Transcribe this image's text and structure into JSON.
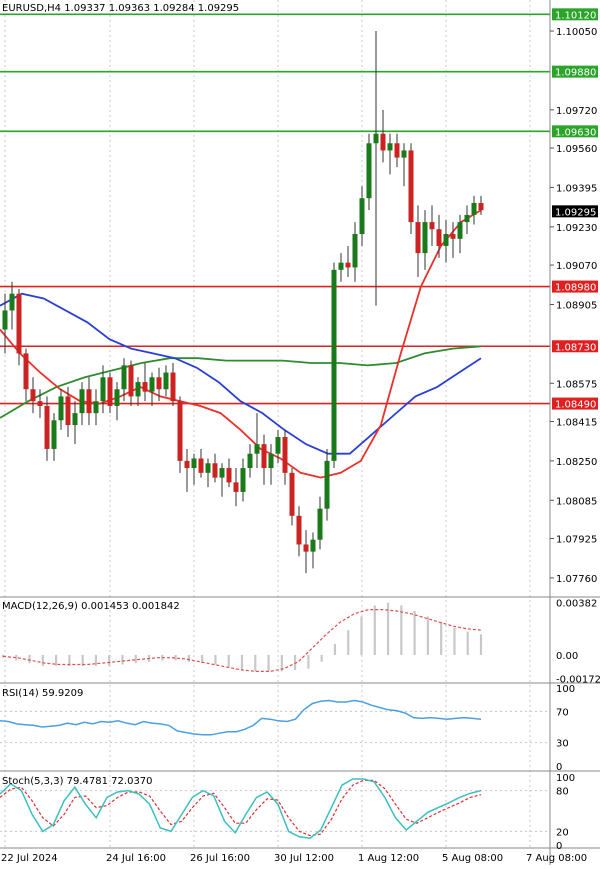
{
  "header": {
    "symbol_line": "EURUSD,H4  1.09337 1.09363 1.09284 1.09295"
  },
  "colors": {
    "bull": "#1a7a1a",
    "bear": "#cc2222",
    "ma_red": "#e8312a",
    "ma_blue": "#2a3fd6",
    "ma_green": "#2e8b2e",
    "level_green": "#2aa52a",
    "level_red": "#e02020",
    "macd_signal": "#e05050",
    "macd_hist": "#c8c8c8",
    "rsi_line": "#4aa0e0",
    "stoch_main": "#3bbfbf",
    "stoch_signal": "#e03030",
    "grid": "#c8c8c8"
  },
  "chart_data": [
    {
      "type": "candlestick",
      "title": "EURUSD,H4",
      "ohlc_text": "1.09337 1.09363 1.09284 1.09295",
      "ylim": [
        1.0768,
        1.1018
      ],
      "price_ticks": [
        "1.10050",
        "1.09720",
        "1.09560",
        "1.09395",
        "1.09230",
        "1.09070",
        "1.08905",
        "1.08575",
        "1.08415",
        "1.08250",
        "1.08085",
        "1.07925",
        "1.07760"
      ],
      "levels": [
        {
          "label": "1.10120",
          "value": 1.1012,
          "color": "green"
        },
        {
          "label": "1.09880",
          "value": 1.0988,
          "color": "green"
        },
        {
          "label": "1.09630",
          "value": 1.0963,
          "color": "green"
        },
        {
          "label": "1.08980",
          "value": 1.0898,
          "color": "red"
        },
        {
          "label": "1.08730",
          "value": 1.0873,
          "color": "red"
        },
        {
          "label": "1.08490",
          "value": 1.0849,
          "color": "red"
        }
      ],
      "current_price_label": "1.09295",
      "current_price": 1.09295,
      "x_labels": [
        "22 Jul 2024",
        "24 Jul 16:00",
        "26 Jul 16:00",
        "30 Jul 12:00",
        "1 Aug 12:00",
        "5 Aug 08:00",
        "7 Aug 08:00"
      ],
      "x_label_index": [
        0,
        15,
        27,
        39,
        51,
        63,
        75
      ],
      "candles": [
        [
          1.088,
          1.0895,
          1.087,
          1.0888
        ],
        [
          1.0888,
          1.09,
          1.088,
          1.0895
        ],
        [
          1.0895,
          1.0897,
          1.0865,
          1.087
        ],
        [
          1.087,
          1.0872,
          1.085,
          1.0855
        ],
        [
          1.0855,
          1.086,
          1.0845,
          1.085
        ],
        [
          1.085,
          1.0855,
          1.0843,
          1.0848
        ],
        [
          1.0848,
          1.0852,
          1.0825,
          1.083
        ],
        [
          1.083,
          1.0845,
          1.0825,
          1.0842
        ],
        [
          1.0842,
          1.0855,
          1.0838,
          1.0852
        ],
        [
          1.0852,
          1.0856,
          1.0835,
          1.084
        ],
        [
          1.084,
          1.085,
          1.0832,
          1.0845
        ],
        [
          1.0845,
          1.0858,
          1.084,
          1.0855
        ],
        [
          1.0855,
          1.086,
          1.084,
          1.0845
        ],
        [
          1.0845,
          1.0855,
          1.084,
          1.085
        ],
        [
          1.085,
          1.0865,
          1.0845,
          1.086
        ],
        [
          1.086,
          1.0862,
          1.0845,
          1.0848
        ],
        [
          1.0848,
          1.0858,
          1.0842,
          1.0855
        ],
        [
          1.0855,
          1.0868,
          1.085,
          1.0865
        ],
        [
          1.0865,
          1.0867,
          1.0848,
          1.0852
        ],
        [
          1.0852,
          1.086,
          1.0848,
          1.0858
        ],
        [
          1.0858,
          1.0866,
          1.085,
          1.0854
        ],
        [
          1.0854,
          1.0862,
          1.0848,
          1.086
        ],
        [
          1.086,
          1.0864,
          1.085,
          1.0855
        ],
        [
          1.0855,
          1.0865,
          1.0852,
          1.0862
        ],
        [
          1.0862,
          1.0866,
          1.0848,
          1.085
        ],
        [
          1.085,
          1.0852,
          1.082,
          1.0825
        ],
        [
          1.0825,
          1.083,
          1.0812,
          1.0822
        ],
        [
          1.0822,
          1.0828,
          1.0815,
          1.0826
        ],
        [
          1.0826,
          1.083,
          1.0818,
          1.082
        ],
        [
          1.082,
          1.0826,
          1.0814,
          1.0824
        ],
        [
          1.0824,
          1.0828,
          1.0816,
          1.0818
        ],
        [
          1.0818,
          1.0824,
          1.081,
          1.0822
        ],
        [
          1.0822,
          1.0826,
          1.0814,
          1.0816
        ],
        [
          1.0816,
          1.0822,
          1.0806,
          1.0812
        ],
        [
          1.0812,
          1.0826,
          1.0808,
          1.0822
        ],
        [
          1.0822,
          1.0832,
          1.0818,
          1.0828
        ],
        [
          1.0828,
          1.0845,
          1.0822,
          1.0832
        ],
        [
          1.0832,
          1.0836,
          1.0815,
          1.0822
        ],
        [
          1.0822,
          1.0832,
          1.0815,
          1.0828
        ],
        [
          1.0828,
          1.0838,
          1.0824,
          1.0835
        ],
        [
          1.0835,
          1.0838,
          1.0815,
          1.082
        ],
        [
          1.082,
          1.0822,
          1.0798,
          1.0802
        ],
        [
          1.0802,
          1.0806,
          1.0785,
          1.079
        ],
        [
          1.079,
          1.0796,
          1.0778,
          1.0787
        ],
        [
          1.0787,
          1.0795,
          1.078,
          1.0792
        ],
        [
          1.0792,
          1.081,
          1.0788,
          1.0805
        ],
        [
          1.0805,
          1.083,
          1.08,
          1.0825
        ],
        [
          1.0825,
          1.0908,
          1.0822,
          1.0905
        ],
        [
          1.0905,
          1.0912,
          1.09,
          1.0908
        ],
        [
          1.0908,
          1.0915,
          1.0902,
          1.0906
        ],
        [
          1.0906,
          1.0925,
          1.09,
          1.092
        ],
        [
          1.092,
          1.094,
          1.0915,
          1.0935
        ],
        [
          1.0935,
          1.0962,
          1.093,
          1.0958
        ],
        [
          1.0958,
          1.1005,
          1.089,
          1.0962
        ],
        [
          1.0962,
          1.0972,
          1.095,
          1.0955
        ],
        [
          1.0955,
          1.0962,
          1.0945,
          1.0958
        ],
        [
          1.0958,
          1.0962,
          1.0948,
          1.0952
        ],
        [
          1.0952,
          1.0958,
          1.094,
          1.0955
        ],
        [
          1.0955,
          1.0958,
          1.092,
          1.0925
        ],
        [
          1.0925,
          1.0932,
          1.0902,
          1.0912
        ],
        [
          1.0912,
          1.093,
          1.0905,
          1.0925
        ],
        [
          1.0925,
          1.0932,
          1.0915,
          1.0922
        ],
        [
          1.0922,
          1.0928,
          1.091,
          1.0915
        ],
        [
          1.0915,
          1.0926,
          1.0908,
          1.092
        ],
        [
          1.092,
          1.0925,
          1.091,
          1.0918
        ],
        [
          1.0918,
          1.0928,
          1.0912,
          1.0925
        ],
        [
          1.0925,
          1.0932,
          1.092,
          1.0928
        ],
        [
          1.0928,
          1.0936,
          1.0924,
          1.0933
        ],
        [
          1.0933,
          1.0936,
          1.0928,
          1.093
        ]
      ],
      "ma_red": [
        1.088,
        1.087,
        1.0862,
        1.0855,
        1.085,
        1.0849,
        1.0852,
        1.0856,
        1.0852,
        1.085,
        1.0848,
        1.0845,
        1.0838,
        1.083,
        1.0826,
        1.082,
        1.0818,
        1.082,
        1.0825,
        1.084,
        1.087,
        1.0898,
        1.0915,
        1.0925,
        1.093
      ],
      "ma_blue": [
        1.089,
        1.0895,
        1.0893,
        1.0888,
        1.0883,
        1.0876,
        1.0872,
        1.087,
        1.0868,
        1.0864,
        1.0858,
        1.085,
        1.0845,
        1.0838,
        1.0832,
        1.0828,
        1.0828,
        1.0836,
        1.0844,
        1.0852,
        1.0856,
        1.0862,
        1.0868
      ],
      "ma_green": [
        1.0843,
        1.085,
        1.0856,
        1.086,
        1.0863,
        1.0866,
        1.0868,
        1.0868,
        1.0867,
        1.0867,
        1.0867,
        1.0866,
        1.0866,
        1.0865,
        1.0866,
        1.087,
        1.0872,
        1.0873
      ]
    },
    {
      "type": "line",
      "title": "MACD(12,26,9) 0.001453 0.001842",
      "ticks": [
        "0.00382",
        "0.00",
        "-0.001726"
      ],
      "ylim": [
        -0.0019,
        0.004
      ],
      "histogram": [
        -0.0002,
        -0.0004,
        -0.0006,
        -0.0008,
        -0.0008,
        -0.0008,
        -0.0008,
        -0.0008,
        -0.0008,
        -0.0007,
        -0.0006,
        -0.0005,
        -0.0004,
        -0.0004,
        -0.0005,
        -0.0006,
        -0.0007,
        -0.0009,
        -0.0011,
        -0.0012,
        -0.0012,
        -0.0012,
        -0.0011,
        -0.001,
        -0.0005,
        0.0008,
        0.0018,
        0.0028,
        0.0036,
        0.0038,
        0.0036,
        0.0032,
        0.0028,
        0.0024,
        0.002,
        0.0017,
        0.0015
      ],
      "signal": [
        -0.0001,
        -0.0002,
        -0.0004,
        -0.0006,
        -0.0007,
        -0.0007,
        -0.0007,
        -0.0006,
        -0.0005,
        -0.0004,
        -0.0003,
        -0.0002,
        -0.0002,
        -0.0003,
        -0.0005,
        -0.0007,
        -0.0009,
        -0.0011,
        -0.0012,
        -0.0012,
        -0.001,
        -0.0005,
        0.0005,
        0.0015,
        0.0024,
        0.003,
        0.0033,
        0.0033,
        0.0032,
        0.003,
        0.0027,
        0.0024,
        0.0021,
        0.0019,
        0.0018
      ]
    },
    {
      "type": "line",
      "title": "RSI(14) 59.9209",
      "ticks": [
        "100",
        "70",
        "30",
        "0"
      ],
      "ylim": [
        0,
        100
      ],
      "values": [
        58,
        57,
        54,
        53,
        52,
        50,
        51,
        52,
        55,
        53,
        56,
        54,
        57,
        56,
        58,
        55,
        53,
        57,
        55,
        54,
        52,
        45,
        43,
        41,
        40,
        40,
        42,
        44,
        44,
        47,
        52,
        61,
        60,
        58,
        57,
        60,
        72,
        80,
        83,
        84,
        82,
        82,
        84,
        82,
        78,
        75,
        72,
        71,
        68,
        62,
        61,
        62,
        61,
        60,
        61,
        62,
        61,
        60
      ]
    },
    {
      "type": "line",
      "title": "Stoch(5,3,3) 79.4781 72.0370",
      "ticks": [
        "100",
        "80",
        "20",
        "0"
      ],
      "ylim": [
        0,
        100
      ],
      "main": [
        75,
        90,
        80,
        45,
        20,
        30,
        65,
        85,
        60,
        40,
        70,
        78,
        80,
        75,
        60,
        25,
        20,
        45,
        70,
        80,
        72,
        35,
        18,
        45,
        70,
        78,
        60,
        20,
        12,
        10,
        22,
        55,
        88,
        97,
        97,
        93,
        70,
        40,
        22,
        35,
        48,
        55,
        62,
        70,
        76,
        80
      ],
      "signal": [
        70,
        82,
        85,
        65,
        40,
        28,
        45,
        70,
        72,
        55,
        58,
        70,
        78,
        78,
        72,
        50,
        30,
        35,
        55,
        72,
        76,
        55,
        32,
        32,
        52,
        68,
        66,
        40,
        20,
        14,
        16,
        38,
        68,
        88,
        95,
        95,
        83,
        60,
        38,
        32,
        40,
        48,
        55,
        62,
        70,
        74
      ]
    }
  ]
}
